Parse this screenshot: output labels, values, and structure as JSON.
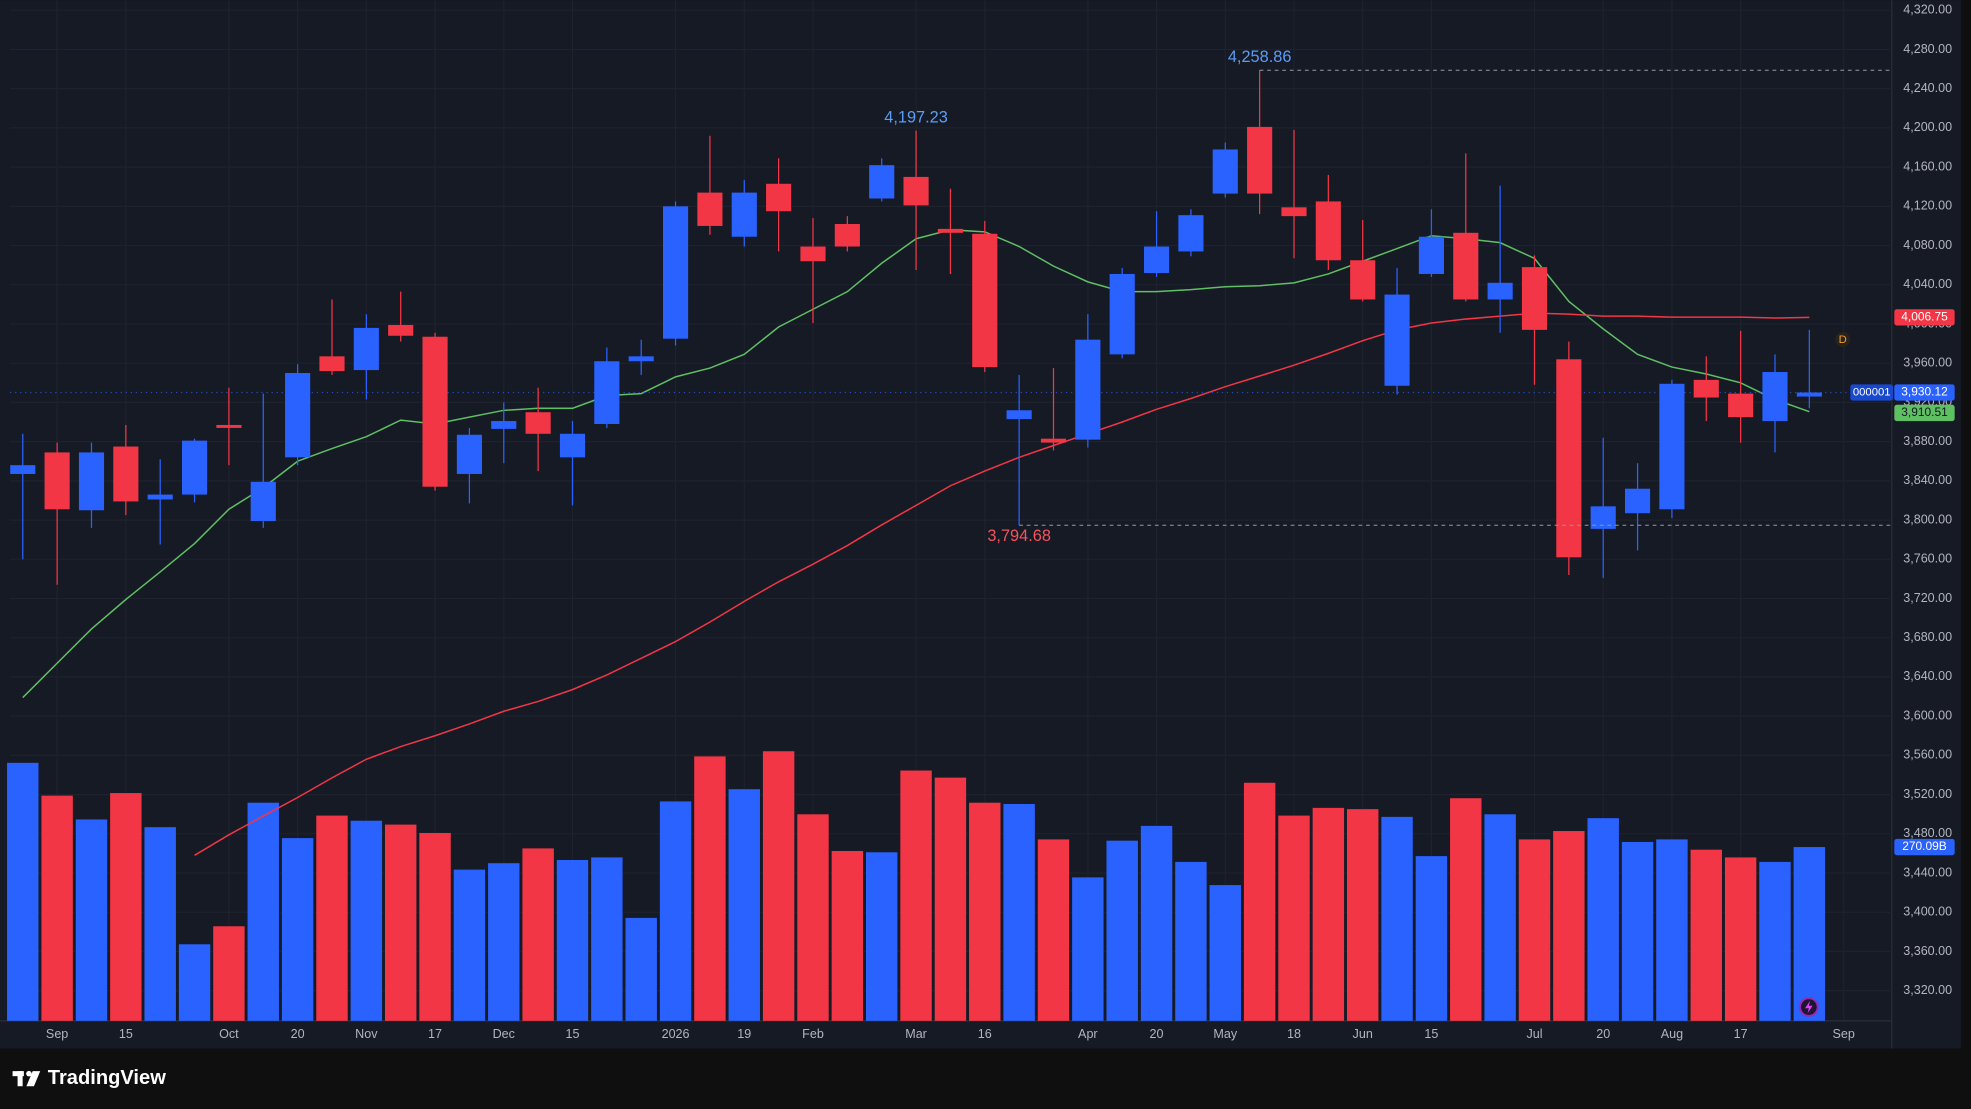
{
  "chart_data": {
    "type": "candlestick",
    "symbol": "000001",
    "brand": "TradingView",
    "interval_marker": "D",
    "up_color": "#2962ff",
    "down_color": "#f23645",
    "grid": true,
    "ylim": [
      3289.2,
      4330.3
    ],
    "yticks": [
      {
        "value": 3320,
        "label": "3,320.00"
      },
      {
        "value": 3360,
        "label": "3,360.00"
      },
      {
        "value": 3400,
        "label": "3,400.00"
      },
      {
        "value": 3440,
        "label": "3,440.00"
      },
      {
        "value": 3480,
        "label": "3,480.00"
      },
      {
        "value": 3520,
        "label": "3,520.00"
      },
      {
        "value": 3560,
        "label": "3,560.00"
      },
      {
        "value": 3600,
        "label": "3,600.00"
      },
      {
        "value": 3640,
        "label": "3,640.00"
      },
      {
        "value": 3680,
        "label": "3,680.00"
      },
      {
        "value": 3720,
        "label": "3,720.00"
      },
      {
        "value": 3760,
        "label": "3,760.00"
      },
      {
        "value": 3800,
        "label": "3,800.00"
      },
      {
        "value": 3840,
        "label": "3,840.00"
      },
      {
        "value": 3880,
        "label": "3,880.00"
      },
      {
        "value": 3920,
        "label": "3,920.00"
      },
      {
        "value": 3960,
        "label": "3,960.00"
      },
      {
        "value": 4000,
        "label": "4,000.00"
      },
      {
        "value": 4040,
        "label": "4,040.00"
      },
      {
        "value": 4080,
        "label": "4,080.00"
      },
      {
        "value": 4120,
        "label": "4,120.00"
      },
      {
        "value": 4160,
        "label": "4,160.00"
      },
      {
        "value": 4200,
        "label": "4,200.00"
      },
      {
        "value": 4240,
        "label": "4,240.00"
      },
      {
        "value": 4280,
        "label": "4,280.00"
      },
      {
        "value": 4320,
        "label": "4,320.00"
      }
    ],
    "xlim": [
      -0.37,
      54.4
    ],
    "xticks": [
      {
        "value": 1,
        "label": "Sep"
      },
      {
        "value": 3,
        "label": "15"
      },
      {
        "value": 6,
        "label": "Oct"
      },
      {
        "value": 8,
        "label": "20"
      },
      {
        "value": 10,
        "label": "Nov"
      },
      {
        "value": 12,
        "label": "17"
      },
      {
        "value": 14,
        "label": "Dec"
      },
      {
        "value": 16,
        "label": "15"
      },
      {
        "value": 19,
        "label": "2026"
      },
      {
        "value": 21,
        "label": "19"
      },
      {
        "value": 23,
        "label": "Feb"
      },
      {
        "value": 26,
        "label": "Mar"
      },
      {
        "value": 28,
        "label": "16"
      },
      {
        "value": 31,
        "label": "Apr"
      },
      {
        "value": 33,
        "label": "20"
      },
      {
        "value": 35,
        "label": "May"
      },
      {
        "value": 37,
        "label": "18"
      },
      {
        "value": 39,
        "label": "Jun"
      },
      {
        "value": 41,
        "label": "15"
      },
      {
        "value": 44,
        "label": "Jul"
      },
      {
        "value": 46,
        "label": "20"
      },
      {
        "value": 48,
        "label": "Aug"
      },
      {
        "value": 50,
        "label": "17"
      },
      {
        "value": 53,
        "label": "Sep"
      }
    ],
    "open": [
      3847,
      3869,
      3810,
      3875,
      3821,
      3826,
      3897,
      3799,
      3864,
      3967,
      3953,
      3999,
      3987,
      3847,
      3893,
      3910,
      3864,
      3898,
      3962,
      3985,
      4134,
      4089,
      4143,
      4079,
      4102,
      4128,
      4150,
      4097,
      4092,
      3903,
      3883,
      3882,
      3969,
      4052,
      4074,
      4133,
      4201,
      4119,
      4125,
      4065,
      3937,
      4051,
      4093,
      4025,
      4058,
      3964,
      3791,
      3807,
      3811,
      3943,
      3929,
      3901,
      3926
    ],
    "high": [
      3888,
      3879,
      3879,
      3897,
      3862,
      3883,
      3935,
      3929,
      3959,
      4025,
      4010,
      4033,
      3991,
      3894,
      3920,
      3935,
      3901,
      3976,
      3984,
      4125,
      4192,
      4147,
      4169,
      4108,
      4110,
      4169,
      4197.23,
      4138,
      4105,
      3948,
      3955,
      4010,
      4057,
      4115,
      4117,
      4185,
      4258.86,
      4198,
      4152,
      4106,
      4057,
      4117,
      4174,
      4141,
      4070,
      3982,
      3884,
      3858,
      3943,
      3967,
      3993,
      3969,
      3994
    ],
    "low": [
      3760,
      3734,
      3792,
      3805,
      3775,
      3818,
      3856,
      3792,
      3856,
      3948,
      3923,
      3982,
      3830,
      3817,
      3858,
      3850,
      3815,
      3894,
      3948,
      3978,
      4091,
      4079,
      4074,
      4001,
      4074,
      4125,
      4055,
      4051,
      3951,
      3794.68,
      3871,
      3874,
      3965,
      4048,
      4069,
      4129,
      4112,
      4067,
      4055,
      4023,
      3928,
      4048,
      4023,
      3991,
      3938,
      3744,
      3741,
      3769,
      3802,
      3901,
      3879,
      3869,
      3914
    ],
    "close": [
      3856,
      3811,
      3869,
      3819,
      3826,
      3881,
      3894,
      3839,
      3950,
      3952,
      3996,
      3988,
      3834,
      3887,
      3901,
      3888,
      3888,
      3962,
      3967,
      4120,
      4100,
      4134,
      4115,
      4064,
      4079,
      4162,
      4121,
      4093,
      3956,
      3912,
      3879,
      3984,
      4051,
      4079,
      4111,
      4178,
      4133,
      4110,
      4065,
      4025,
      4030,
      4089,
      4025,
      4042,
      3994,
      3762,
      3814,
      3832,
      3939,
      3925,
      3905,
      3951,
      3930.12
    ],
    "close_last_label": "3,930.12",
    "volume": [
      401,
      350,
      313,
      354,
      301,
      119,
      147,
      339,
      284,
      319,
      311,
      305,
      292,
      235,
      245,
      268,
      250,
      254,
      160,
      341,
      411,
      360,
      419,
      321,
      264,
      262,
      389,
      378,
      339,
      337,
      282,
      223,
      280,
      303,
      247,
      211,
      370,
      319,
      331,
      329,
      317,
      256,
      346,
      321,
      282,
      295,
      315,
      278,
      282,
      266,
      254,
      247,
      270.09
    ],
    "volume_lim": [
      0,
      420
    ],
    "volume_last_label": "270.09B",
    "series": [
      {
        "color": "#5fbf63",
        "last_label": "3,910.51",
        "values": [
          3619,
          3654,
          3689,
          3719,
          3747,
          3776,
          3811,
          3833,
          3860,
          3873,
          3885,
          3902,
          3898,
          3905,
          3912,
          3914,
          3914,
          3927,
          3929,
          3946,
          3955,
          3969,
          3997,
          4015,
          4033,
          4062,
          4087,
          4096,
          4094,
          4079,
          4059,
          4043,
          4033,
          4033,
          4035,
          4038,
          4039,
          4042,
          4051,
          4064,
          4077,
          4090,
          4087,
          4083,
          4067,
          4023,
          3995,
          3969,
          3956,
          3949,
          3940,
          3923,
          3910.51
        ]
      },
      {
        "color": "#f23645",
        "last_label": "4,006.75",
        "values": [
          null,
          null,
          null,
          null,
          null,
          3458,
          3479,
          3498,
          3517,
          3537,
          3556,
          3569,
          3580,
          3592,
          3605,
          3615,
          3627,
          3642,
          3659,
          3676,
          3696,
          3717,
          3737,
          3755,
          3774,
          3795,
          3815,
          3835,
          3850,
          3864,
          3876,
          3888,
          3900,
          3913,
          3924,
          3936,
          3947,
          3958,
          3970,
          3983,
          3994,
          4001,
          4005,
          4008,
          4011,
          4010,
          4008,
          4008,
          4007,
          4007,
          4007,
          4006,
          4006.75
        ]
      }
    ],
    "annotations": [
      {
        "label": "4,197.23",
        "value": 4197.23,
        "color": "#5b9cf6",
        "line": false
      },
      {
        "label": "4,258.86",
        "value": 4258.86,
        "color": "#5b9cf6",
        "line": true
      },
      {
        "label": "3,794.68",
        "value": 3794.68,
        "color": "#f7525f",
        "line": true
      }
    ]
  }
}
